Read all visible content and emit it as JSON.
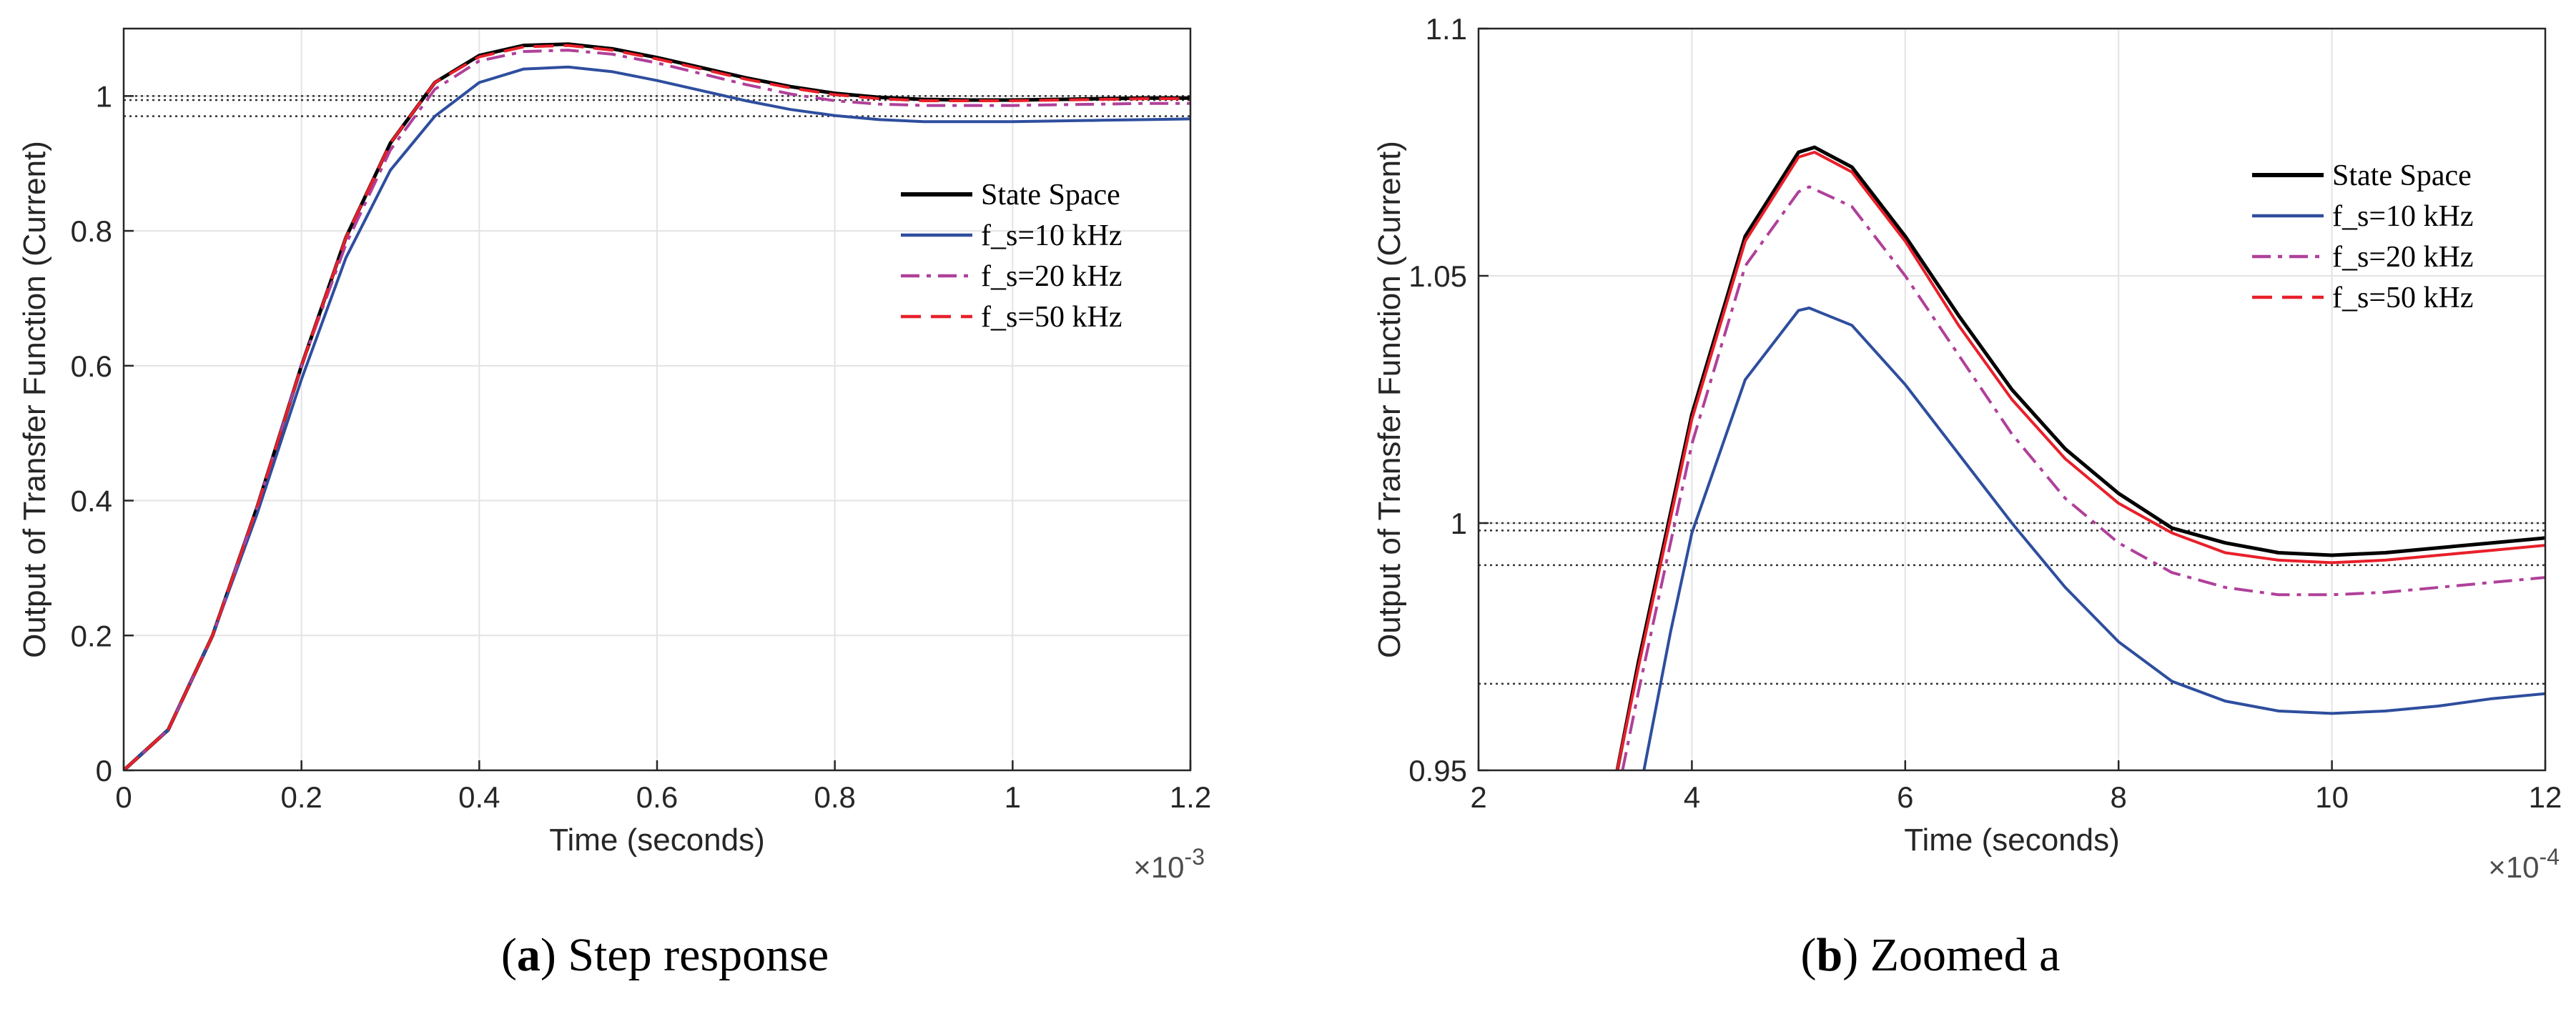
{
  "chart_data": [
    {
      "type": "line",
      "panel_label": "a",
      "caption": "Step response",
      "xlabel": "Time (seconds)",
      "ylabel": "Output of Transfer Function (Current)",
      "x_exponent": "×10",
      "x_exponent_power": "-3",
      "xlim": [
        0,
        1.2
      ],
      "ylim": [
        0,
        1.1
      ],
      "xticks": [
        0,
        0.2,
        0.4,
        0.6,
        0.8,
        1,
        1.2
      ],
      "xtick_labels": [
        "0",
        "0.2",
        "0.4",
        "0.6",
        "0.8",
        "1",
        "1.2"
      ],
      "yticks": [
        0,
        0.2,
        0.4,
        0.6,
        0.8,
        1
      ],
      "ytick_labels": [
        "0",
        "0.2",
        "0.4",
        "0.6",
        "0.8",
        "1"
      ],
      "grid": true,
      "legend_position": "right",
      "reference_lines": [
        1.0,
        0.994,
        0.97
      ],
      "series": [
        {
          "name": "State Space",
          "color": "#000000",
          "dash": "solid",
          "x": [
            0,
            0.05,
            0.1,
            0.15,
            0.2,
            0.25,
            0.3,
            0.35,
            0.4,
            0.45,
            0.5,
            0.55,
            0.6,
            0.65,
            0.7,
            0.75,
            0.8,
            0.85,
            0.9,
            0.95,
            1.0,
            1.05,
            1.1,
            1.15,
            1.2
          ],
          "y": [
            0,
            0.06,
            0.2,
            0.39,
            0.6,
            0.79,
            0.93,
            1.02,
            1.06,
            1.075,
            1.077,
            1.07,
            1.057,
            1.042,
            1.027,
            1.014,
            1.004,
            0.998,
            0.995,
            0.994,
            0.994,
            0.995,
            0.996,
            0.997,
            0.997
          ]
        },
        {
          "name": "f_s=10 kHz",
          "color": "#2e4e9e",
          "dash": "solid",
          "x": [
            0,
            0.05,
            0.1,
            0.15,
            0.2,
            0.25,
            0.3,
            0.35,
            0.4,
            0.45,
            0.5,
            0.55,
            0.6,
            0.65,
            0.7,
            0.75,
            0.8,
            0.85,
            0.9,
            0.95,
            1.0,
            1.05,
            1.1,
            1.15,
            1.2
          ],
          "y": [
            0,
            0.06,
            0.2,
            0.38,
            0.58,
            0.76,
            0.89,
            0.97,
            1.02,
            1.04,
            1.043,
            1.036,
            1.023,
            1.008,
            0.993,
            0.98,
            0.971,
            0.965,
            0.962,
            0.962,
            0.962,
            0.963,
            0.964,
            0.965,
            0.966
          ]
        },
        {
          "name": "f_s=20 kHz",
          "color": "#b0409a",
          "dash": "dashdot",
          "x": [
            0,
            0.05,
            0.1,
            0.15,
            0.2,
            0.25,
            0.3,
            0.35,
            0.4,
            0.45,
            0.5,
            0.55,
            0.6,
            0.65,
            0.7,
            0.75,
            0.8,
            0.85,
            0.9,
            0.95,
            1.0,
            1.05,
            1.1,
            1.15,
            1.2
          ],
          "y": [
            0,
            0.06,
            0.2,
            0.39,
            0.6,
            0.78,
            0.92,
            1.01,
            1.052,
            1.066,
            1.068,
            1.062,
            1.049,
            1.033,
            1.017,
            1.003,
            0.993,
            0.988,
            0.986,
            0.986,
            0.986,
            0.987,
            0.988,
            0.989,
            0.989
          ]
        },
        {
          "name": "f_s=50 kHz",
          "color": "#e8202a",
          "dash": "dashed",
          "x": [
            0,
            0.05,
            0.1,
            0.15,
            0.2,
            0.25,
            0.3,
            0.35,
            0.4,
            0.45,
            0.5,
            0.55,
            0.6,
            0.65,
            0.7,
            0.75,
            0.8,
            0.85,
            0.9,
            0.95,
            1.0,
            1.05,
            1.1,
            1.15,
            1.2
          ],
          "y": [
            0,
            0.06,
            0.2,
            0.39,
            0.6,
            0.79,
            0.93,
            1.02,
            1.058,
            1.073,
            1.075,
            1.068,
            1.055,
            1.04,
            1.025,
            1.012,
            1.002,
            0.996,
            0.993,
            0.993,
            0.993,
            0.994,
            0.995,
            0.996,
            0.996
          ]
        }
      ]
    },
    {
      "type": "line",
      "panel_label": "b",
      "caption": "Zoomed a",
      "xlabel": "Time (seconds)",
      "ylabel": "Output of Transfer Function (Current)",
      "x_exponent": "×10",
      "x_exponent_power": "-4",
      "xlim": [
        2,
        12
      ],
      "ylim": [
        0.95,
        1.1
      ],
      "xticks": [
        2,
        4,
        6,
        8,
        10,
        12
      ],
      "xtick_labels": [
        "2",
        "4",
        "6",
        "8",
        "10",
        "12"
      ],
      "yticks": [
        0.95,
        1,
        1.05,
        1.1
      ],
      "ytick_labels": [
        "0.95",
        "1",
        "1.05",
        "1.1"
      ],
      "grid": true,
      "legend_position": "top-right",
      "reference_lines": [
        1.0,
        0.9985,
        0.9915,
        0.9675
      ],
      "series": [
        {
          "name": "State Space",
          "color": "#000000",
          "dash": "solid",
          "x": [
            3.3,
            3.5,
            4.0,
            4.5,
            5.0,
            5.15,
            5.5,
            6.0,
            6.5,
            7.0,
            7.5,
            8.0,
            8.5,
            9.0,
            9.5,
            10.0,
            10.5,
            11.0,
            11.5,
            12.0
          ],
          "y": [
            0.95,
            0.972,
            1.022,
            1.058,
            1.075,
            1.076,
            1.072,
            1.058,
            1.042,
            1.027,
            1.015,
            1.006,
            0.999,
            0.996,
            0.994,
            0.9935,
            0.994,
            0.995,
            0.996,
            0.997
          ]
        },
        {
          "name": "f_s=10 kHz",
          "color": "#2e4e9e",
          "dash": "solid",
          "x": [
            3.55,
            3.8,
            4.0,
            4.5,
            5.0,
            5.1,
            5.5,
            6.0,
            6.5,
            7.0,
            7.5,
            8.0,
            8.5,
            9.0,
            9.5,
            10.0,
            10.5,
            11.0,
            11.5,
            12.0
          ],
          "y": [
            0.95,
            0.978,
            0.998,
            1.029,
            1.043,
            1.0435,
            1.04,
            1.028,
            1.014,
            1.0,
            0.987,
            0.976,
            0.968,
            0.964,
            0.962,
            0.9615,
            0.962,
            0.963,
            0.9645,
            0.9655
          ]
        },
        {
          "name": "f_s=20 kHz",
          "color": "#b0409a",
          "dash": "dashdot",
          "x": [
            3.35,
            3.5,
            4.0,
            4.5,
            5.0,
            5.1,
            5.5,
            6.0,
            6.5,
            7.0,
            7.5,
            8.0,
            8.5,
            9.0,
            9.5,
            10.0,
            10.5,
            11.0,
            11.5,
            12.0
          ],
          "y": [
            0.95,
            0.966,
            1.016,
            1.052,
            1.067,
            1.068,
            1.064,
            1.05,
            1.034,
            1.018,
            1.005,
            0.996,
            0.99,
            0.987,
            0.9855,
            0.9855,
            0.986,
            0.987,
            0.988,
            0.989
          ]
        },
        {
          "name": "f_s=50 kHz",
          "color": "#e8202a",
          "dash": "solid",
          "x": [
            3.3,
            3.5,
            4.0,
            4.5,
            5.0,
            5.15,
            5.5,
            6.0,
            6.5,
            7.0,
            7.5,
            8.0,
            8.5,
            9.0,
            9.5,
            10.0,
            10.5,
            11.0,
            11.5,
            12.0
          ],
          "y": [
            0.95,
            0.971,
            1.021,
            1.057,
            1.074,
            1.075,
            1.071,
            1.057,
            1.04,
            1.025,
            1.013,
            1.004,
            0.998,
            0.994,
            0.9925,
            0.992,
            0.9925,
            0.9935,
            0.9945,
            0.9955
          ]
        }
      ],
      "legend_dash_override": {
        "f_s=50 kHz": "dashed"
      }
    }
  ]
}
